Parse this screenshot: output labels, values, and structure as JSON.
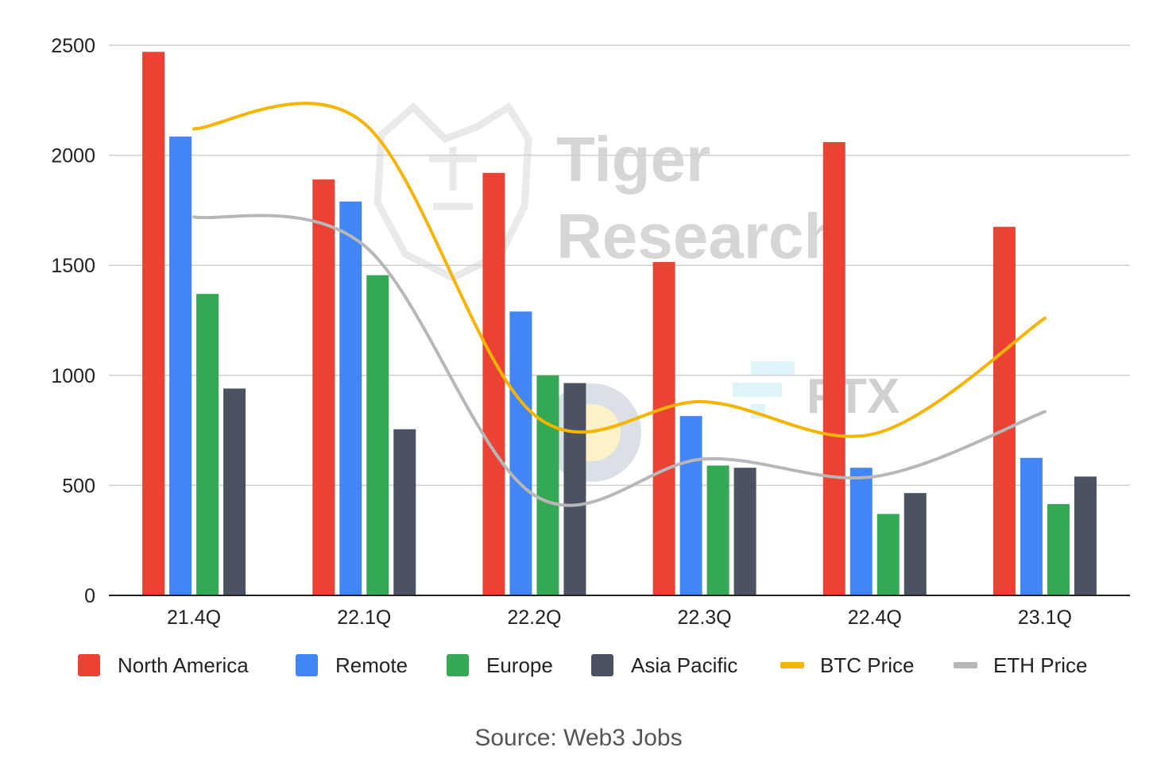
{
  "chart_data": {
    "type": "bar",
    "categories": [
      "21.4Q",
      "22.1Q",
      "22.2Q",
      "22.3Q",
      "22.4Q",
      "23.1Q"
    ],
    "ylim": [
      0,
      2500
    ],
    "yticks": [
      0,
      500,
      1000,
      1500,
      2000,
      2500
    ],
    "grid": true,
    "legend_position": "bottom",
    "series": [
      {
        "name": "North America",
        "type": "bar",
        "color": "#EA4335",
        "values": [
          2470,
          1890,
          1920,
          1515,
          2060,
          1675
        ]
      },
      {
        "name": "Remote",
        "type": "bar",
        "color": "#4285F4",
        "values": [
          2085,
          1790,
          1290,
          815,
          580,
          625
        ]
      },
      {
        "name": "Europe",
        "type": "bar",
        "color": "#34A853",
        "values": [
          1370,
          1455,
          1000,
          590,
          370,
          415
        ]
      },
      {
        "name": "Asia Pacific",
        "type": "bar",
        "color": "#4B5262",
        "values": [
          940,
          755,
          965,
          580,
          465,
          540
        ]
      },
      {
        "name": "BTC Price",
        "type": "line",
        "color": "#F5B400",
        "values": [
          2120,
          2145,
          820,
          880,
          735,
          1260
        ]
      },
      {
        "name": "ETH Price",
        "type": "line",
        "color": "#B7B7B7",
        "values": [
          1720,
          1590,
          455,
          620,
          540,
          835
        ]
      }
    ]
  },
  "source": "Source: Web3 Jobs",
  "watermark": {
    "line1": "Tiger",
    "line2": "Research",
    "exchange": "FTX"
  }
}
